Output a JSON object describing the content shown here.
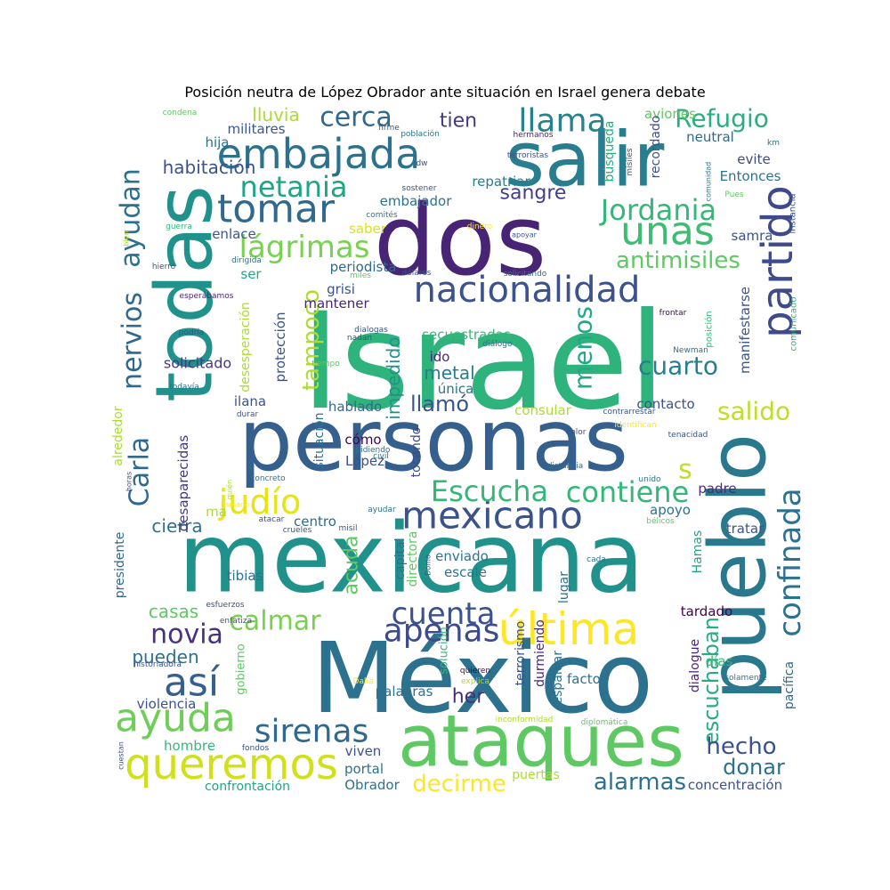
{
  "title": "Posición neutra de López Obrador ante situación en Israel genera debate",
  "palette": [
    "#440154",
    "#472d7b",
    "#3b528b",
    "#2c728e",
    "#21918c",
    "#28ae80",
    "#5ec962",
    "#addc30",
    "#fde725"
  ],
  "words": [
    {
      "text": "Israel",
      "weight": 1.0,
      "color": "#2eb37c"
    },
    {
      "text": "personas",
      "weight": 0.74,
      "color": "#355f8d"
    },
    {
      "text": "mexicana",
      "weight": 0.74,
      "color": "#21918c"
    },
    {
      "text": "México",
      "weight": 0.68,
      "color": "#2c728e"
    },
    {
      "text": "dos",
      "weight": 0.68,
      "color": "#482475"
    },
    {
      "text": "todas",
      "weight": 0.55,
      "color": "#21918c"
    },
    {
      "text": "salir",
      "weight": 0.52,
      "color": "#287d8e"
    },
    {
      "text": "pueblo",
      "weight": 0.5,
      "color": "#2a788e"
    },
    {
      "text": "ataques",
      "weight": 0.5,
      "color": "#5ec962"
    },
    {
      "text": "queremos",
      "weight": 0.34,
      "color": "#d0e11c"
    },
    {
      "text": "nacionalidad",
      "weight": 0.33,
      "color": "#3b528b"
    },
    {
      "text": "embajada",
      "weight": 0.33,
      "color": "#2c728e"
    },
    {
      "text": "última",
      "weight": 0.32,
      "color": "#fde725"
    },
    {
      "text": "partido",
      "weight": 0.3,
      "color": "#3e4a89"
    },
    {
      "text": "mexicano",
      "weight": 0.3,
      "color": "#3b528b"
    },
    {
      "text": "ayuda",
      "weight": 0.3,
      "color": "#6ece58"
    },
    {
      "text": "tomar",
      "weight": 0.28,
      "color": "#31688e"
    },
    {
      "text": "unas",
      "weight": 0.28,
      "color": "#3fbc73"
    },
    {
      "text": "así",
      "weight": 0.28,
      "color": "#355f8d"
    },
    {
      "text": "apenas",
      "weight": 0.27,
      "color": "#3e4a89"
    },
    {
      "text": "llama",
      "weight": 0.25,
      "color": "#26828e"
    },
    {
      "text": "judío",
      "weight": 0.25,
      "color": "#e5e419"
    },
    {
      "text": "Escucha",
      "weight": 0.25,
      "color": "#35b779"
    },
    {
      "text": "contiene",
      "weight": 0.25,
      "color": "#35b779"
    },
    {
      "text": "cuenta",
      "weight": 0.25,
      "color": "#3b528b"
    },
    {
      "text": "sirenas",
      "weight": 0.24,
      "color": "#31688e"
    },
    {
      "text": "confinada",
      "weight": 0.24,
      "color": "#2c728e"
    },
    {
      "text": "lágrimas",
      "weight": 0.23,
      "color": "#7ad151"
    },
    {
      "text": "netania",
      "weight": 0.22,
      "color": "#20a486"
    },
    {
      "text": "Jordania",
      "weight": 0.22,
      "color": "#35b779"
    },
    {
      "text": "ayudan",
      "weight": 0.22,
      "color": "#2c728e"
    },
    {
      "text": "nervios",
      "weight": 0.22,
      "color": "#31688e"
    },
    {
      "text": "Carla",
      "weight": 0.22,
      "color": "#31688e"
    },
    {
      "text": "menos",
      "weight": 0.21,
      "color": "#22a884"
    },
    {
      "text": "calmar",
      "weight": 0.21,
      "color": "#7ad151"
    },
    {
      "text": "novia",
      "weight": 0.21,
      "color": "#46327e"
    },
    {
      "text": "cerca",
      "weight": 0.2,
      "color": "#31688e"
    },
    {
      "text": "tampoco",
      "weight": 0.2,
      "color": "#addc30"
    },
    {
      "text": "salido",
      "weight": 0.19,
      "color": "#bddf26"
    },
    {
      "text": "cuarto",
      "weight": 0.19,
      "color": "#287d8e"
    },
    {
      "text": "escuchaban",
      "weight": 0.19,
      "color": "#27ad81"
    },
    {
      "text": "Refugio",
      "weight": 0.18,
      "color": "#29af7f"
    },
    {
      "text": "antimisiles",
      "weight": 0.18,
      "color": "#5ec962"
    },
    {
      "text": "hecho",
      "weight": 0.18,
      "color": "#3b528b"
    },
    {
      "text": "decirme",
      "weight": 0.18,
      "color": "#fde725"
    },
    {
      "text": "alarmas",
      "weight": 0.18,
      "color": "#2c728e"
    },
    {
      "text": "donar",
      "weight": 0.17,
      "color": "#2c728e"
    },
    {
      "text": "s",
      "weight": 0.17,
      "color": "#bddf26"
    },
    {
      "text": "llamó",
      "weight": 0.15,
      "color": "#39568c"
    },
    {
      "text": "impedido",
      "weight": 0.15,
      "color": "#21918c"
    },
    {
      "text": "lluvia",
      "weight": 0.14,
      "color": "#addc30"
    },
    {
      "text": "tien",
      "weight": 0.14,
      "color": "#453781"
    },
    {
      "text": "sangre",
      "weight": 0.14,
      "color": "#433e85"
    },
    {
      "text": "habitación",
      "weight": 0.14,
      "color": "#3b528b"
    },
    {
      "text": "metal",
      "weight": 0.14,
      "color": "#287d8e"
    },
    {
      "text": "acuda",
      "weight": 0.14,
      "color": "#5ec962"
    },
    {
      "text": "cierra",
      "weight": 0.14,
      "color": "#2c728e"
    },
    {
      "text": "pueden",
      "weight": 0.14,
      "color": "#2c728e"
    },
    {
      "text": "casas",
      "weight": 0.13,
      "color": "#5ec962"
    },
    {
      "text": "her",
      "weight": 0.14,
      "color": "#472d7b"
    },
    {
      "text": "solicitado",
      "weight": 0.12,
      "color": "#453781"
    },
    {
      "text": "secuestradas",
      "weight": 0.1,
      "color": "#35b779"
    },
    {
      "text": "periodista",
      "weight": 0.1,
      "color": "#31688e"
    },
    {
      "text": "grisi",
      "weight": 0.1,
      "color": "#3b528b"
    },
    {
      "text": "mantener",
      "weight": 0.1,
      "color": "#482677"
    },
    {
      "text": "ser",
      "weight": 0.1,
      "color": "#22a884"
    },
    {
      "text": "ido",
      "weight": 0.1,
      "color": "#482878"
    },
    {
      "text": "única",
      "weight": 0.1,
      "color": "#2c728e"
    },
    {
      "text": "hablado",
      "weight": 0.1,
      "color": "#31688e"
    },
    {
      "text": "consular",
      "weight": 0.1,
      "color": "#addc30"
    },
    {
      "text": "contacto",
      "weight": 0.1,
      "color": "#3b528b"
    },
    {
      "text": "manifestarse",
      "weight": 0.1,
      "color": "#3b528b"
    },
    {
      "text": "protección",
      "weight": 0.1,
      "color": "#3b528b"
    },
    {
      "text": "desesperación",
      "weight": 0.09,
      "color": "#addc30"
    },
    {
      "text": "militares",
      "weight": 0.1,
      "color": "#39568c"
    },
    {
      "text": "hija",
      "weight": 0.1,
      "color": "#2c728e"
    },
    {
      "text": "enlace",
      "weight": 0.1,
      "color": "#39568c"
    },
    {
      "text": "saber",
      "weight": 0.1,
      "color": "#dde318"
    },
    {
      "text": "repatriar",
      "weight": 0.1,
      "color": "#287d8e"
    },
    {
      "text": "embajador",
      "weight": 0.1,
      "color": "#2c728e"
    },
    {
      "text": "aviones",
      "weight": 0.1,
      "color": "#5ec962"
    },
    {
      "text": "recordado",
      "weight": 0.09,
      "color": "#3b528b"
    },
    {
      "text": "búsqueda",
      "weight": 0.09,
      "color": "#27ad81"
    },
    {
      "text": "neutral",
      "weight": 0.09,
      "color": "#31688e"
    },
    {
      "text": "evite",
      "weight": 0.1,
      "color": "#3e4a89"
    },
    {
      "text": "Entonces",
      "weight": 0.1,
      "color": "#2c728e"
    },
    {
      "text": "samra",
      "weight": 0.1,
      "color": "#3b528b"
    },
    {
      "text": "situación",
      "weight": 0.09,
      "color": "#2c728e"
    },
    {
      "text": "cómo",
      "weight": 0.1,
      "color": "#440154"
    },
    {
      "text": "López",
      "weight": 0.1,
      "color": "#3b528b"
    },
    {
      "text": "tocando",
      "weight": 0.09,
      "color": "#3e4a89"
    },
    {
      "text": "desaparecidas",
      "weight": 0.1,
      "color": "#453781"
    },
    {
      "text": "ma",
      "weight": 0.1,
      "color": "#addc30"
    },
    {
      "text": "centro",
      "weight": 0.1,
      "color": "#31688e"
    },
    {
      "text": "apoyo",
      "weight": 0.1,
      "color": "#2c728e"
    },
    {
      "text": "padre",
      "weight": 0.1,
      "color": "#472d7b"
    },
    {
      "text": "tratar",
      "weight": 0.1,
      "color": "#3b528b"
    },
    {
      "text": "Hamas",
      "weight": 0.09,
      "color": "#20a486"
    },
    {
      "text": "capital",
      "weight": 0.09,
      "color": "#2c728e"
    },
    {
      "text": "directora",
      "weight": 0.09,
      "color": "#5ec962"
    },
    {
      "text": "enviado",
      "weight": 0.1,
      "color": "#2c728e"
    },
    {
      "text": "escale",
      "weight": 0.1,
      "color": "#2c728e"
    },
    {
      "text": "lugar",
      "weight": 0.08,
      "color": "#2c728e"
    },
    {
      "text": "tibias",
      "weight": 0.1,
      "color": "#2c728e"
    },
    {
      "text": "tardado",
      "weight": 0.1,
      "color": "#440154"
    },
    {
      "text": "dialogue",
      "weight": 0.09,
      "color": "#482475"
    },
    {
      "text": "días",
      "weight": 0.1,
      "color": "#35b779"
    },
    {
      "text": "factor",
      "weight": 0.1,
      "color": "#2c728e"
    },
    {
      "text": "terrorismo",
      "weight": 0.09,
      "color": "#3b528b"
    },
    {
      "text": "durmiendo",
      "weight": 0.08,
      "color": "#482878"
    },
    {
      "text": "respaldar",
      "weight": 0.08,
      "color": "#2c728e"
    },
    {
      "text": "solución",
      "weight": 0.08,
      "color": "#35b779"
    },
    {
      "text": "gobierno",
      "weight": 0.08,
      "color": "#5ec962"
    },
    {
      "text": "palabras",
      "weight": 0.1,
      "color": "#2c728e"
    },
    {
      "text": "presidente",
      "weight": 0.09,
      "color": "#31688e"
    },
    {
      "text": "violencia",
      "weight": 0.1,
      "color": "#3b528b"
    },
    {
      "text": "hombre",
      "weight": 0.1,
      "color": "#35b779"
    },
    {
      "text": "viven",
      "weight": 0.1,
      "color": "#3b528b"
    },
    {
      "text": "portal",
      "weight": 0.1,
      "color": "#2c728e"
    },
    {
      "text": "Obrador",
      "weight": 0.1,
      "color": "#2c728e"
    },
    {
      "text": "puertas",
      "weight": 0.09,
      "color": "#addc30"
    },
    {
      "text": "concentración",
      "weight": 0.1,
      "color": "#3b528b"
    },
    {
      "text": "confrontación",
      "weight": 0.09,
      "color": "#20a486"
    },
    {
      "text": "pacífica",
      "weight": 0.09,
      "color": "#31688e"
    },
    {
      "text": "alrededor",
      "weight": 0.08,
      "color": "#addc30"
    },
    {
      "text": "ilana",
      "weight": 0.1,
      "color": "#3b528b"
    },
    {
      "text": "condena",
      "weight": 0.05,
      "color": "#5ec962"
    },
    {
      "text": "firme",
      "weight": 0.05,
      "color": "#3b528b"
    },
    {
      "text": "población",
      "weight": 0.05,
      "color": "#2c728e"
    },
    {
      "text": "hermanos",
      "weight": 0.05,
      "color": "#482878"
    },
    {
      "text": "terroristas",
      "weight": 0.05,
      "color": "#3b528b"
    },
    {
      "text": "misiles",
      "weight": 0.05,
      "color": "#3b528b"
    },
    {
      "text": "comunidad",
      "weight": 0.04,
      "color": "#2c728e"
    },
    {
      "text": "km",
      "weight": 0.05,
      "color": "#2c728e"
    },
    {
      "text": "dw",
      "weight": 0.05,
      "color": "#3b528b"
    },
    {
      "text": "sostener",
      "weight": 0.05,
      "color": "#3b528b"
    },
    {
      "text": "comités",
      "weight": 0.05,
      "color": "#2c728e"
    },
    {
      "text": "Pues",
      "weight": 0.05,
      "color": "#5ec962"
    },
    {
      "text": "instancia",
      "weight": 0.06,
      "color": "#3b528b"
    },
    {
      "text": "guerra",
      "weight": 0.05,
      "color": "#35b779"
    },
    {
      "text": "bien",
      "weight": 0.04,
      "color": "#addc30"
    },
    {
      "text": "dinero",
      "weight": 0.05,
      "color": "#fde725"
    },
    {
      "text": "apoyar",
      "weight": 0.04,
      "color": "#3b528b"
    },
    {
      "text": "dirigida",
      "weight": 0.05,
      "color": "#2c728e"
    },
    {
      "text": "miles",
      "weight": 0.05,
      "color": "#5ec962"
    },
    {
      "text": "dólares",
      "weight": 0.05,
      "color": "#3b528b"
    },
    {
      "text": "solicitando",
      "weight": 0.05,
      "color": "#2c728e"
    },
    {
      "text": "hierro",
      "weight": 0.05,
      "color": "#3b528b"
    },
    {
      "text": "esperábamos",
      "weight": 0.05,
      "color": "#482878"
    },
    {
      "text": "comunicado",
      "weight": 0.06,
      "color": "#35b779"
    },
    {
      "text": "frontar",
      "weight": 0.05,
      "color": "#440154"
    },
    {
      "text": "podría",
      "weight": 0.05,
      "color": "#3b528b"
    },
    {
      "text": "dialogas",
      "weight": 0.05,
      "color": "#3b528b"
    },
    {
      "text": "diálogo",
      "weight": 0.05,
      "color": "#2c728e"
    },
    {
      "text": "nadan",
      "weight": 0.05,
      "color": "#3b528b"
    },
    {
      "text": "Newman",
      "weight": 0.05,
      "color": "#2c728e"
    },
    {
      "text": "posición",
      "weight": 0.06,
      "color": "#35b779"
    },
    {
      "text": "tiempo",
      "weight": 0.05,
      "color": "#5ec962"
    },
    {
      "text": "todavía",
      "weight": 0.05,
      "color": "#2c728e"
    },
    {
      "text": "durar",
      "weight": 0.05,
      "color": "#3b528b"
    },
    {
      "text": "contrarrestar",
      "weight": 0.05,
      "color": "#3b528b"
    },
    {
      "text": "identifican",
      "weight": 0.05,
      "color": "#fde725"
    },
    {
      "text": "tenacidad",
      "weight": 0.05,
      "color": "#3b528b"
    },
    {
      "text": "dolor",
      "weight": 0.05,
      "color": "#3b528b"
    },
    {
      "text": "pidiendo",
      "weight": 0.05,
      "color": "#2c728e"
    },
    {
      "text": "civil",
      "weight": 0.05,
      "color": "#2c728e"
    },
    {
      "text": "sale",
      "weight": 0.04,
      "color": "#2c728e"
    },
    {
      "text": "horas",
      "weight": 0.04,
      "color": "#3b528b"
    },
    {
      "text": "quién",
      "weight": 0.04,
      "color": "#addc30"
    },
    {
      "text": "distancia",
      "weight": 0.05,
      "color": "#2c728e"
    },
    {
      "text": "unido",
      "weight": 0.05,
      "color": "#2c728e"
    },
    {
      "text": "concreto",
      "weight": 0.05,
      "color": "#2c728e"
    },
    {
      "text": "llamado",
      "weight": 0.05,
      "color": "#fde725"
    },
    {
      "text": "ayudar",
      "weight": 0.05,
      "color": "#2c728e"
    },
    {
      "text": "atacar",
      "weight": 0.05,
      "color": "#3b528b"
    },
    {
      "text": "crueles",
      "weight": 0.05,
      "color": "#3b528b"
    },
    {
      "text": "misil",
      "weight": 0.05,
      "color": "#3b528b"
    },
    {
      "text": "bélicos",
      "weight": 0.05,
      "color": "#5ec962"
    },
    {
      "text": "Domo",
      "weight": 0.04,
      "color": "#3b528b"
    },
    {
      "text": "cada",
      "weight": 0.05,
      "color": "#2c728e"
    },
    {
      "text": "esfuerzos",
      "weight": 0.05,
      "color": "#3b528b"
    },
    {
      "text": "enfatiza",
      "weight": 0.05,
      "color": "#3b528b"
    },
    {
      "text": "historiadora",
      "weight": 0.05,
      "color": "#3b528b"
    },
    {
      "text": "Dalia",
      "weight": 0.05,
      "color": "#fde725"
    },
    {
      "text": "explica",
      "weight": 0.05,
      "color": "#addc30"
    },
    {
      "text": "quieren",
      "weight": 0.05,
      "color": "#440154"
    },
    {
      "text": "solamente",
      "weight": 0.05,
      "color": "#2c728e"
    },
    {
      "text": "inconformidad",
      "weight": 0.05,
      "color": "#addc30"
    },
    {
      "text": "diplomática",
      "weight": 0.05,
      "color": "#5ec962"
    },
    {
      "text": "fondos",
      "weight": 0.05,
      "color": "#3b528b"
    },
    {
      "text": "cuestan",
      "weight": 0.04,
      "color": "#3b528b"
    }
  ]
}
